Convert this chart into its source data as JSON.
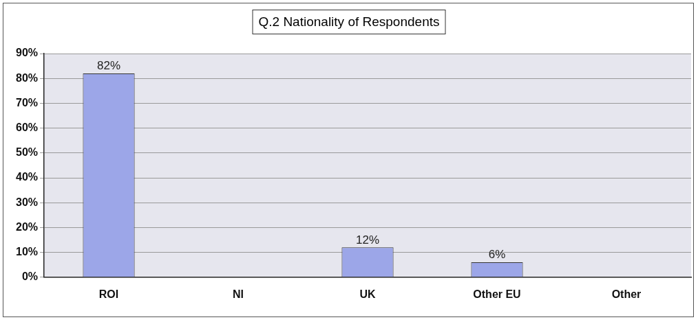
{
  "chart_data": {
    "type": "bar",
    "title": "Q.2 Nationality of Respondents",
    "categories": [
      "ROI",
      "NI",
      "UK",
      "Other EU",
      "Other"
    ],
    "values": [
      82,
      0,
      12,
      6,
      0
    ],
    "value_labels": [
      "82%",
      null,
      "12%",
      "6%",
      null
    ],
    "color": "#9ca6e8",
    "ylim": [
      0,
      90
    ],
    "yticks": [
      {
        "value": 0,
        "label": "0%"
      },
      {
        "value": 10,
        "label": "10%"
      },
      {
        "value": 20,
        "label": "20%"
      },
      {
        "value": 30,
        "label": "30%"
      },
      {
        "value": 40,
        "label": "40%"
      },
      {
        "value": 50,
        "label": "50%"
      },
      {
        "value": 60,
        "label": "60%"
      },
      {
        "value": 70,
        "label": "70%"
      },
      {
        "value": 80,
        "label": "80%"
      },
      {
        "value": 90,
        "label": "90%"
      }
    ],
    "grid": "y",
    "legend": false
  }
}
